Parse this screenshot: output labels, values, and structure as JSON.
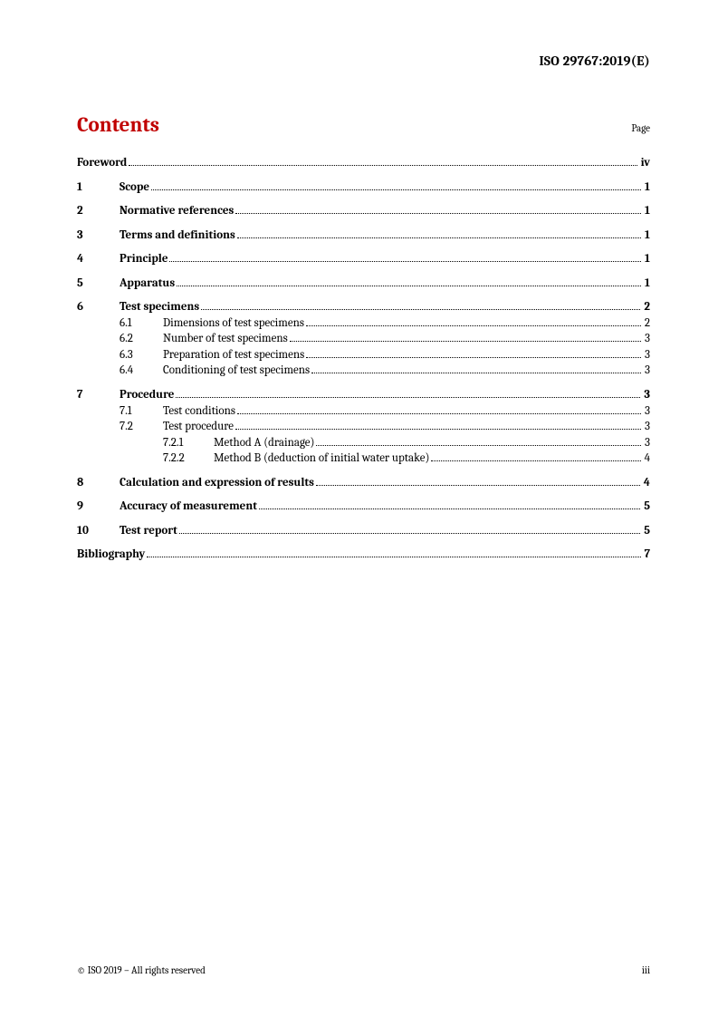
{
  "docId": "ISO 29767:2019(E)",
  "contentsTitle": "Contents",
  "pageLabel": "Page",
  "toc": {
    "foreword": {
      "title": "Foreword",
      "page": "iv"
    },
    "s1": {
      "num": "1",
      "title": "Scope",
      "page": "1"
    },
    "s2": {
      "num": "2",
      "title": "Normative references",
      "page": "1"
    },
    "s3": {
      "num": "3",
      "title": "Terms and definitions",
      "page": "1"
    },
    "s4": {
      "num": "4",
      "title": "Principle",
      "page": "1"
    },
    "s5": {
      "num": "5",
      "title": "Apparatus",
      "page": "1"
    },
    "s6": {
      "num": "6",
      "title": "Test specimens",
      "page": "2"
    },
    "s6_1": {
      "num": "6.1",
      "title": "Dimensions of test specimens",
      "page": "2"
    },
    "s6_2": {
      "num": "6.2",
      "title": "Number of test specimens",
      "page": "3"
    },
    "s6_3": {
      "num": "6.3",
      "title": "Preparation of test specimens",
      "page": "3"
    },
    "s6_4": {
      "num": "6.4",
      "title": "Conditioning of test specimens",
      "page": "3"
    },
    "s7": {
      "num": "7",
      "title": "Procedure",
      "page": "3"
    },
    "s7_1": {
      "num": "7.1",
      "title": "Test conditions",
      "page": "3"
    },
    "s7_2": {
      "num": "7.2",
      "title": "Test procedure",
      "page": "3"
    },
    "s7_2_1": {
      "num": "7.2.1",
      "title": "Method A (drainage)",
      "page": "3"
    },
    "s7_2_2": {
      "num": "7.2.2",
      "title": "Method B (deduction of initial water uptake)",
      "page": "4"
    },
    "s8": {
      "num": "8",
      "title": "Calculation and expression of results",
      "page": "4"
    },
    "s9": {
      "num": "9",
      "title": "Accuracy of measurement",
      "page": "5"
    },
    "s10": {
      "num": "10",
      "title": "Test report",
      "page": "5"
    },
    "bibliography": {
      "title": "Bibliography",
      "page": "7"
    }
  },
  "footer": {
    "copyright": "© ISO 2019 – All rights reserved",
    "pageNum": "iii"
  },
  "colors": {
    "accent": "#c00000",
    "text": "#000000",
    "background": "#ffffff"
  },
  "typography": {
    "docId_fontsize": 15,
    "contentsTitle_fontsize": 23,
    "pageLabel_fontsize": 11,
    "toc_fontsize": 13,
    "footer_fontsize": 11,
    "font_family": "Cambria, Georgia, serif"
  }
}
